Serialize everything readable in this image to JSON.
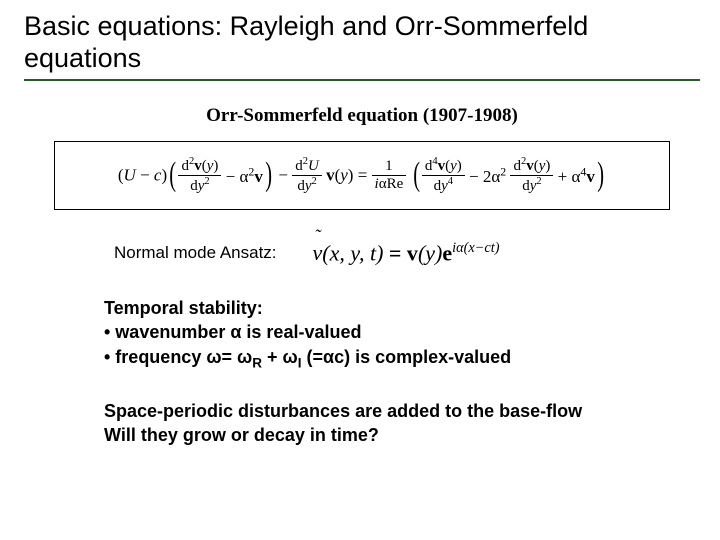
{
  "title": "Basic equations: Rayleigh and Orr-Sommerfeld equations",
  "subheading": "Orr-Sommerfeld equation (1907-1908)",
  "ansatz_label": "Normal mode Ansatz:",
  "stability": {
    "heading": "Temporal stability:",
    "b1": "• wavenumber α is real-valued",
    "b2_pre": "• frequency ω= ω",
    "b2_r": "R",
    "b2_mid": " + ω",
    "b2_i": "I",
    "b2_post": " (=αc) is complex-valued"
  },
  "question": {
    "l1": "Space-periodic disturbances are added to the base-flow",
    "l2": "Will they grow or decay in time?"
  },
  "colors": {
    "rule": "#2a5a2a",
    "text": "#000000",
    "bg": "#ffffff"
  }
}
